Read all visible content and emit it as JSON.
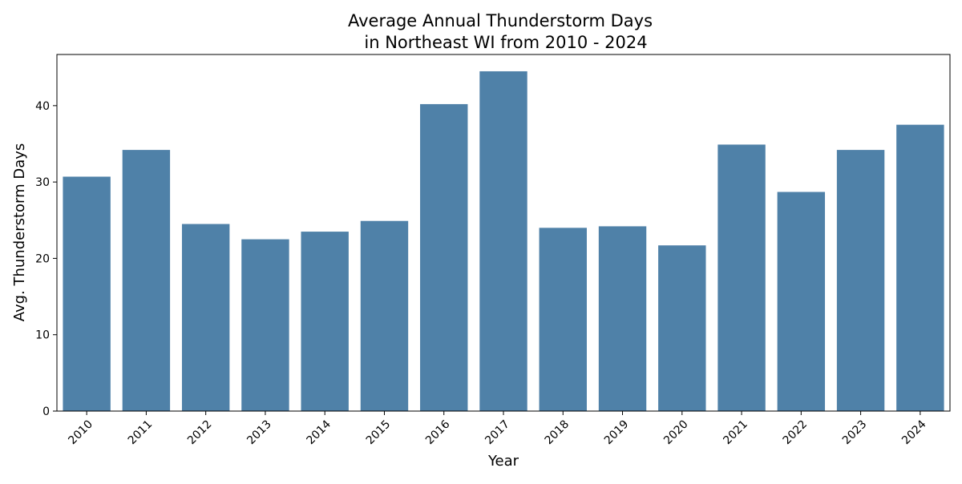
{
  "chart_data": {
    "type": "bar",
    "title_line1": "Average Annual Thunderstorm Days",
    "title_line2": "in Northeast WI from 2010 - 2024",
    "xlabel": "Year",
    "ylabel": "Avg. Thunderstorm Days",
    "categories": [
      "2010",
      "2011",
      "2012",
      "2013",
      "2014",
      "2015",
      "2016",
      "2017",
      "2018",
      "2019",
      "2020",
      "2021",
      "2022",
      "2023",
      "2024"
    ],
    "values": [
      30.7,
      34.2,
      24.5,
      22.5,
      23.5,
      24.9,
      40.2,
      44.5,
      24.0,
      24.2,
      21.7,
      34.9,
      28.7,
      34.2,
      37.5
    ],
    "yticks": [
      0,
      10,
      20,
      30,
      40
    ],
    "ylim": [
      0,
      46.7
    ],
    "bar_color": "#4f81a8",
    "grid": false,
    "legend": "none"
  }
}
